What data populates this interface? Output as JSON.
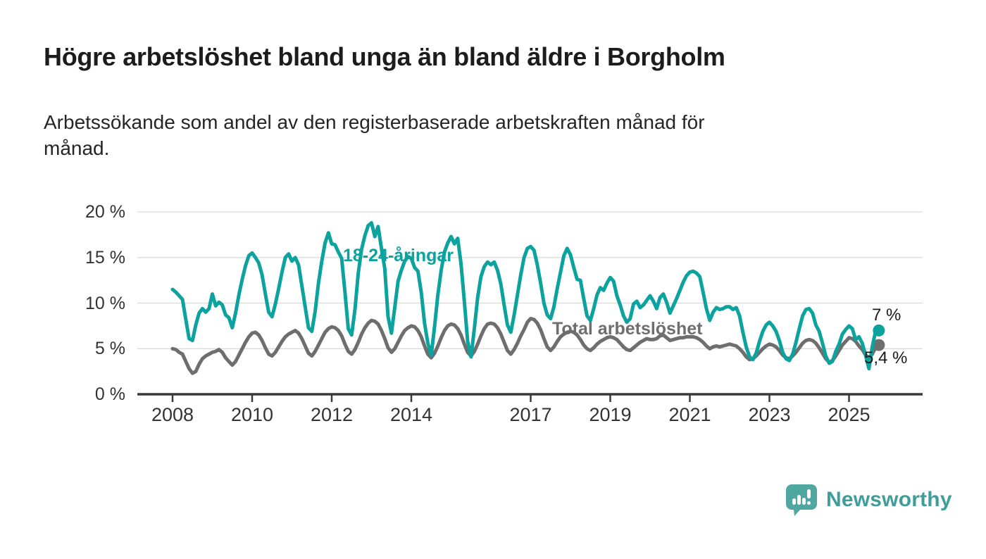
{
  "header": {
    "title": "Högre arbetslöshet bland unga än bland äldre i Borgholm",
    "subtitle": "Arbetssökande som andel av den registerbaserade arbetskraften månad för månad.",
    "subtitle_line1": "Arbetssökande som andel av den registerbaserade arbetskraften månad för",
    "subtitle_line2": "månad."
  },
  "footer": {
    "brand": "Newsworthy",
    "logo_icon": "speech-bubble-bar-chart"
  },
  "colors": {
    "youth_line": "#0CA29E",
    "total_line": "#6E6E6E",
    "gridline": "#D9D9D9",
    "axis": "#3A3A3A",
    "text": "#1c1c1c",
    "logo_teal": "#4FA7A2"
  },
  "chart_data": {
    "type": "line",
    "title": "Högre arbetslöshet bland unga än bland äldre i Borgholm",
    "subtitle": "Arbetssökande som andel av den registerbaserade arbetskraften månad för månad.",
    "x_unit": "month",
    "x_start": "2008-01",
    "x_end": "2025-10",
    "ylim": [
      0,
      20
    ],
    "ytick_values": [
      0,
      5,
      10,
      15,
      20
    ],
    "ytick_labels": [
      "0 %",
      "5 %",
      "10 %",
      "15 %",
      "20 %"
    ],
    "xtick_years": [
      2008,
      2010,
      2012,
      2014,
      2017,
      2019,
      2021,
      2023,
      2025
    ],
    "xtick_labels": [
      "2008",
      "2010",
      "2012",
      "2014",
      "2017",
      "2019",
      "2021",
      "2023",
      "2025"
    ],
    "grid": "horizontal",
    "legend_position": "inline-labels",
    "series": [
      {
        "name": "18-24-åringar",
        "color": "#0CA29E",
        "end_label": "7 %",
        "end_value": 7.0,
        "values": [
          11.5,
          11.2,
          10.8,
          10.4,
          8.2,
          6.1,
          5.9,
          7.6,
          8.9,
          9.4,
          9.0,
          9.4,
          11.0,
          9.7,
          10.1,
          9.8,
          8.7,
          8.4,
          7.3,
          8.9,
          10.9,
          12.6,
          14.1,
          15.2,
          15.5,
          15.0,
          14.4,
          13.1,
          11.0,
          9.0,
          8.5,
          9.9,
          11.6,
          13.4,
          15.0,
          15.4,
          14.6,
          15.0,
          14.2,
          11.9,
          9.6,
          7.3,
          6.9,
          9.1,
          12.2,
          14.6,
          16.6,
          17.7,
          16.5,
          16.4,
          15.6,
          14.9,
          11.2,
          7.2,
          6.5,
          9.3,
          13.3,
          15.9,
          17.4,
          18.5,
          18.8,
          17.3,
          18.4,
          16.0,
          13.8,
          8.5,
          6.7,
          9.5,
          12.4,
          13.6,
          14.6,
          15.1,
          14.9,
          13.9,
          13.5,
          11.2,
          7.8,
          5.6,
          4.3,
          7.4,
          10.9,
          13.6,
          15.6,
          16.6,
          17.3,
          16.5,
          17.1,
          14.3,
          10.2,
          5.8,
          4.1,
          7.2,
          10.6,
          12.9,
          14.0,
          14.5,
          14.2,
          14.5,
          13.6,
          12.1,
          9.8,
          7.6,
          6.8,
          8.7,
          10.9,
          13.1,
          15.0,
          16.0,
          16.2,
          15.8,
          14.2,
          12.2,
          10.0,
          8.7,
          8.3,
          9.6,
          11.6,
          13.4,
          15.2,
          16.0,
          15.3,
          13.9,
          12.6,
          12.5,
          10.5,
          8.6,
          8.1,
          9.4,
          10.9,
          11.7,
          11.4,
          12.2,
          12.8,
          12.4,
          10.8,
          9.8,
          8.6,
          7.9,
          8.3,
          9.9,
          10.2,
          9.5,
          9.8,
          10.3,
          10.8,
          10.2,
          9.4,
          10.6,
          11.0,
          10.1,
          8.9,
          9.7,
          10.5,
          11.4,
          12.3,
          13.0,
          13.4,
          13.5,
          13.3,
          12.9,
          11.2,
          9.4,
          8.1,
          9.0,
          9.5,
          9.3,
          9.4,
          9.6,
          9.6,
          9.3,
          9.5,
          8.6,
          6.8,
          5.2,
          4.1,
          3.8,
          4.5,
          5.8,
          6.9,
          7.6,
          7.9,
          7.5,
          6.9,
          5.9,
          4.6,
          3.9,
          3.7,
          4.4,
          5.7,
          7.2,
          8.6,
          9.3,
          9.4,
          8.9,
          7.6,
          6.9,
          5.6,
          4.2,
          3.4,
          3.6,
          4.7,
          5.5,
          6.6,
          7.1,
          7.5,
          7.2,
          6.0,
          6.3,
          5.6,
          4.3,
          2.8,
          5.2,
          6.9,
          7.0
        ]
      },
      {
        "name": "Total arbetslöshet",
        "color": "#6E6E6E",
        "end_label": "5,4 %",
        "end_value": 5.4,
        "values": [
          5.0,
          4.9,
          4.6,
          4.4,
          3.6,
          2.8,
          2.3,
          2.5,
          3.3,
          3.9,
          4.2,
          4.4,
          4.6,
          4.7,
          4.9,
          4.6,
          4.0,
          3.6,
          3.2,
          3.6,
          4.3,
          5.0,
          5.7,
          6.3,
          6.7,
          6.8,
          6.5,
          5.9,
          5.1,
          4.4,
          4.2,
          4.6,
          5.2,
          5.8,
          6.3,
          6.6,
          6.8,
          7.0,
          6.7,
          6.1,
          5.3,
          4.5,
          4.2,
          4.7,
          5.4,
          6.1,
          6.8,
          7.2,
          7.4,
          7.3,
          7.0,
          6.4,
          5.5,
          4.7,
          4.4,
          4.9,
          5.7,
          6.6,
          7.3,
          7.8,
          8.1,
          8.0,
          7.7,
          7.0,
          6.1,
          5.1,
          4.6,
          5.0,
          5.7,
          6.4,
          7.0,
          7.3,
          7.5,
          7.4,
          7.0,
          6.3,
          5.3,
          4.4,
          4.0,
          4.5,
          5.3,
          6.2,
          7.0,
          7.5,
          7.7,
          7.6,
          7.2,
          6.5,
          5.5,
          4.6,
          4.2,
          4.7,
          5.5,
          6.4,
          7.2,
          7.7,
          7.8,
          7.7,
          7.3,
          6.6,
          5.7,
          4.8,
          4.4,
          4.9,
          5.6,
          6.4,
          7.1,
          7.9,
          8.3,
          8.2,
          7.8,
          7.1,
          6.1,
          5.2,
          4.8,
          5.2,
          5.8,
          6.3,
          6.6,
          6.8,
          6.9,
          6.8,
          6.5,
          6.0,
          5.4,
          5.0,
          4.8,
          5.1,
          5.5,
          5.8,
          6.0,
          6.2,
          6.3,
          6.2,
          6.0,
          5.6,
          5.2,
          4.9,
          4.8,
          5.1,
          5.4,
          5.7,
          5.9,
          6.1,
          6.0,
          6.0,
          6.1,
          6.4,
          6.5,
          6.2,
          5.9,
          6.0,
          6.1,
          6.2,
          6.2,
          6.3,
          6.3,
          6.3,
          6.2,
          6.0,
          5.7,
          5.3,
          5.0,
          5.2,
          5.3,
          5.2,
          5.3,
          5.4,
          5.5,
          5.4,
          5.3,
          5.0,
          4.6,
          4.1,
          3.8,
          3.9,
          4.2,
          4.6,
          5.0,
          5.3,
          5.5,
          5.4,
          5.2,
          4.8,
          4.3,
          4.0,
          3.9,
          4.2,
          4.6,
          5.1,
          5.6,
          5.9,
          6.0,
          5.9,
          5.6,
          5.1,
          4.5,
          3.9,
          3.5,
          3.7,
          4.2,
          4.8,
          5.4,
          5.8,
          6.2,
          6.1,
          5.8,
          5.3,
          4.9,
          4.3,
          4.0,
          4.4,
          5.1,
          5.4
        ]
      }
    ]
  }
}
